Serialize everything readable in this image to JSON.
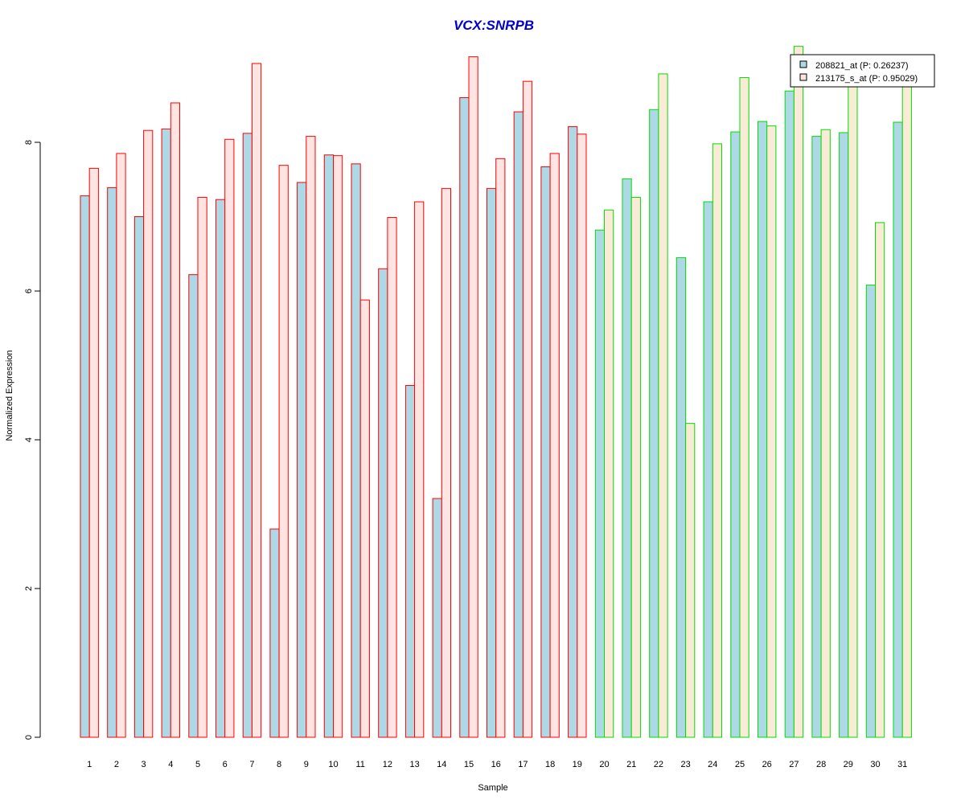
{
  "chart_data": {
    "type": "bar",
    "title": "VCX:SNRPB",
    "xlabel": "Sample",
    "ylabel": "Normalized Expression",
    "ylim": [
      0,
      9.2
    ],
    "yticks": [
      "0",
      "2",
      "4",
      "6",
      "8"
    ],
    "grid": false,
    "legend_position": "top-right",
    "categories": [
      "1",
      "2",
      "3",
      "4",
      "5",
      "6",
      "7",
      "8",
      "9",
      "10",
      "11",
      "12",
      "13",
      "14",
      "15",
      "16",
      "17",
      "18",
      "19",
      "20",
      "21",
      "22",
      "23",
      "24",
      "25",
      "26",
      "27",
      "28",
      "29",
      "30",
      "31"
    ],
    "series": [
      {
        "name": "208821_at (P: 0.26237)",
        "values": [
          7.28,
          7.39,
          7.0,
          8.18,
          6.22,
          7.23,
          8.12,
          2.8,
          7.46,
          7.83,
          7.71,
          6.3,
          4.73,
          3.21,
          8.6,
          7.38,
          8.41,
          7.67,
          8.21,
          6.82,
          7.51,
          8.44,
          6.45,
          7.2,
          8.14,
          8.28,
          8.69,
          8.08,
          8.13,
          6.08,
          8.27
        ]
      },
      {
        "name": "213175_s_at (P: 0.95029)",
        "values": [
          7.65,
          7.85,
          8.16,
          8.53,
          7.26,
          8.04,
          9.06,
          7.69,
          8.08,
          7.82,
          5.88,
          6.99,
          7.2,
          7.38,
          9.15,
          7.78,
          8.82,
          7.85,
          8.11,
          7.09,
          7.26,
          8.92,
          4.22,
          7.98,
          8.87,
          8.22,
          9.29,
          8.17,
          8.76,
          6.92,
          8.77
        ]
      }
    ],
    "group_colors": {
      "series1_fill": "#add8e6",
      "series2_fill_group1": "#ffe4e1",
      "series2_fill_group2": "#faebd7",
      "border_group1": "#ff0000",
      "border_group2": "#00dd00",
      "title_color": "#0000cd"
    },
    "group1_count": 19
  }
}
